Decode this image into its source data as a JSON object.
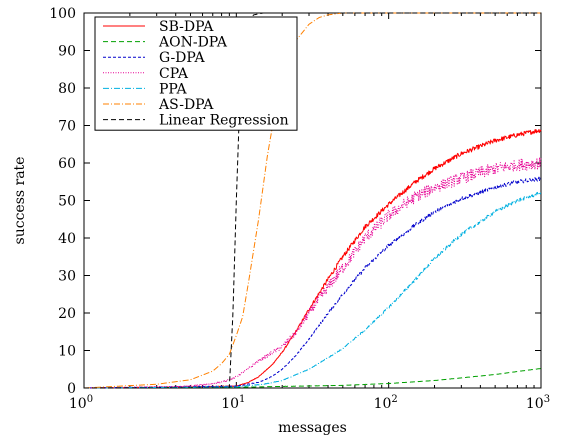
{
  "chart_data": {
    "type": "line",
    "title": "",
    "xlabel": "messages",
    "ylabel": "success rate",
    "xscale": "log",
    "xlim": [
      1,
      1000
    ],
    "ylim": [
      0,
      100
    ],
    "x_ticks": [
      {
        "base": "10",
        "exp": "0"
      },
      {
        "base": "10",
        "exp": "1"
      },
      {
        "base": "10",
        "exp": "2"
      },
      {
        "base": "10",
        "exp": "3"
      }
    ],
    "y_ticks": [
      "0",
      "10",
      "20",
      "30",
      "40",
      "50",
      "60",
      "70",
      "80",
      "90",
      "100"
    ],
    "grid": false,
    "legend_position": "top-left",
    "series": [
      {
        "name": "SB-DPA",
        "color": "#ff0000",
        "dash": "solid",
        "noise": 0.6,
        "x": [
          1,
          5,
          10,
          12,
          14,
          17,
          20,
          25,
          30,
          40,
          50,
          70,
          100,
          150,
          200,
          300,
          500,
          700,
          1000
        ],
        "values": [
          0,
          0.3,
          0.5,
          1.5,
          3,
          6,
          9.5,
          15.5,
          21,
          29,
          35,
          43,
          49,
          55,
          58.5,
          62.5,
          66,
          67.5,
          68.8
        ]
      },
      {
        "name": "AON-DPA",
        "color": "#00a000",
        "dash": "dashed",
        "noise": 0.15,
        "x": [
          1,
          10,
          50,
          100,
          200,
          300,
          500,
          700,
          1000
        ],
        "values": [
          0,
          0.2,
          0.7,
          1.2,
          2,
          2.7,
          3.6,
          4.4,
          5.2
        ]
      },
      {
        "name": "G-DPA",
        "color": "#0000cc",
        "dash": "dashed-short",
        "noise": 0.5,
        "x": [
          1,
          10,
          14,
          17,
          20,
          25,
          30,
          40,
          50,
          70,
          100,
          150,
          200,
          300,
          500,
          700,
          1000
        ],
        "values": [
          0,
          0.5,
          1.5,
          3,
          5,
          9,
          13,
          20,
          25,
          32,
          38,
          43.5,
          47,
          50.5,
          53.5,
          55,
          55.8
        ]
      },
      {
        "name": "CPA",
        "color": "#e60094",
        "dash": "dotted",
        "noise": 1.6,
        "x": [
          1,
          5,
          8,
          10,
          15,
          20,
          25,
          30,
          40,
          50,
          70,
          100,
          150,
          200,
          300,
          500,
          700,
          1000
        ],
        "values": [
          0,
          0.5,
          1.5,
          3,
          8,
          11,
          15,
          20,
          27,
          32,
          40,
          46,
          51,
          53.5,
          56,
          58.5,
          59.5,
          60
        ]
      },
      {
        "name": "PPA",
        "color": "#00b0e0",
        "dash": "dash-dot",
        "noise": 0.45,
        "x": [
          1,
          10,
          15,
          20,
          30,
          50,
          70,
          100,
          150,
          200,
          300,
          500,
          700,
          1000
        ],
        "values": [
          0,
          0.3,
          1,
          2,
          5,
          10.5,
          15.5,
          21.5,
          29,
          34.5,
          41,
          47,
          50,
          52
        ]
      },
      {
        "name": "AS-DPA",
        "color": "#ff8000",
        "dash": "dash-dot",
        "noise": 0,
        "x": [
          1,
          3,
          5,
          7,
          8,
          9,
          10,
          11,
          12,
          14,
          16,
          18,
          20,
          22,
          25,
          30,
          35,
          40,
          50,
          60,
          1000
        ],
        "values": [
          0,
          1,
          2.2,
          4.5,
          6.5,
          9,
          14,
          19,
          28,
          45,
          62,
          74,
          82,
          88,
          93,
          97,
          98.8,
          99.5,
          100,
          100,
          100
        ]
      },
      {
        "name": "Linear Regression",
        "color": "#000000",
        "dash": "dashed",
        "noise": 0,
        "x": [
          1,
          9,
          9.5,
          10,
          10.5,
          11,
          11.5,
          12,
          13,
          15,
          1000
        ],
        "values": [
          0,
          0,
          20,
          50,
          75,
          88,
          95,
          98,
          99.5,
          100,
          100
        ]
      }
    ]
  }
}
